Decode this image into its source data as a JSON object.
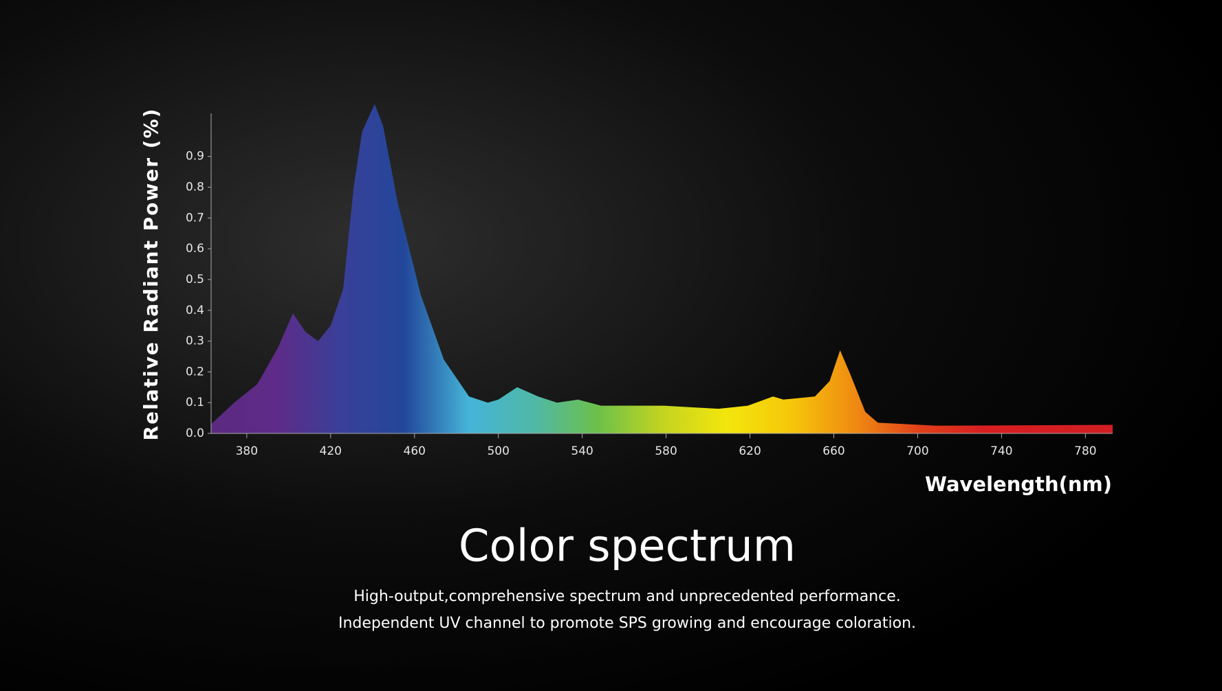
{
  "chart_data": {
    "type": "area",
    "title": "Color spectrum",
    "subtitle": [
      "High-output,comprehensive spectrum and unprecedented performance.",
      "Independent UV channel to promote SPS growing and encourage  coloration."
    ],
    "x_label": "Wavelength(nm)",
    "y_label": "Relative  Radiant  Power (%)",
    "x": [
      363,
      374,
      385,
      395,
      402,
      408,
      414,
      420,
      426,
      431,
      435,
      441,
      445,
      452,
      463,
      474,
      486,
      495,
      500,
      509,
      519,
      528,
      538,
      549,
      579,
      605,
      619,
      631,
      636,
      651,
      658,
      663,
      668,
      675,
      681,
      709,
      793
    ],
    "values": [
      0.03,
      0.1,
      0.16,
      0.28,
      0.39,
      0.33,
      0.3,
      0.35,
      0.47,
      0.8,
      0.98,
      1.07,
      1.0,
      0.75,
      0.45,
      0.24,
      0.12,
      0.1,
      0.11,
      0.15,
      0.12,
      0.1,
      0.11,
      0.09,
      0.09,
      0.08,
      0.09,
      0.12,
      0.11,
      0.12,
      0.17,
      0.27,
      0.19,
      0.07,
      0.035,
      0.025,
      0.028
    ],
    "colors": [
      "#5a2a80",
      "#5f2b88",
      "#3a3f98",
      "#22479a",
      "#45b4d8",
      "#4fb8a8",
      "#6cc04a",
      "#c2d420",
      "#f3e60c",
      "#f5c70a",
      "#f08a12",
      "#e0401a",
      "#d81e20",
      "#d41e22",
      "#d21e22"
    ],
    "xlim": [
      363,
      793
    ],
    "ylim": [
      0,
      1.04
    ],
    "xticks": [
      380,
      420,
      460,
      500,
      540,
      580,
      620,
      660,
      700,
      740,
      780
    ],
    "yticks": [
      {
        "value": 0,
        "label": "0.0"
      },
      0.1,
      0.2,
      0.3,
      0.4,
      0.5,
      0.6,
      0.7,
      0.8,
      0.9
    ]
  }
}
